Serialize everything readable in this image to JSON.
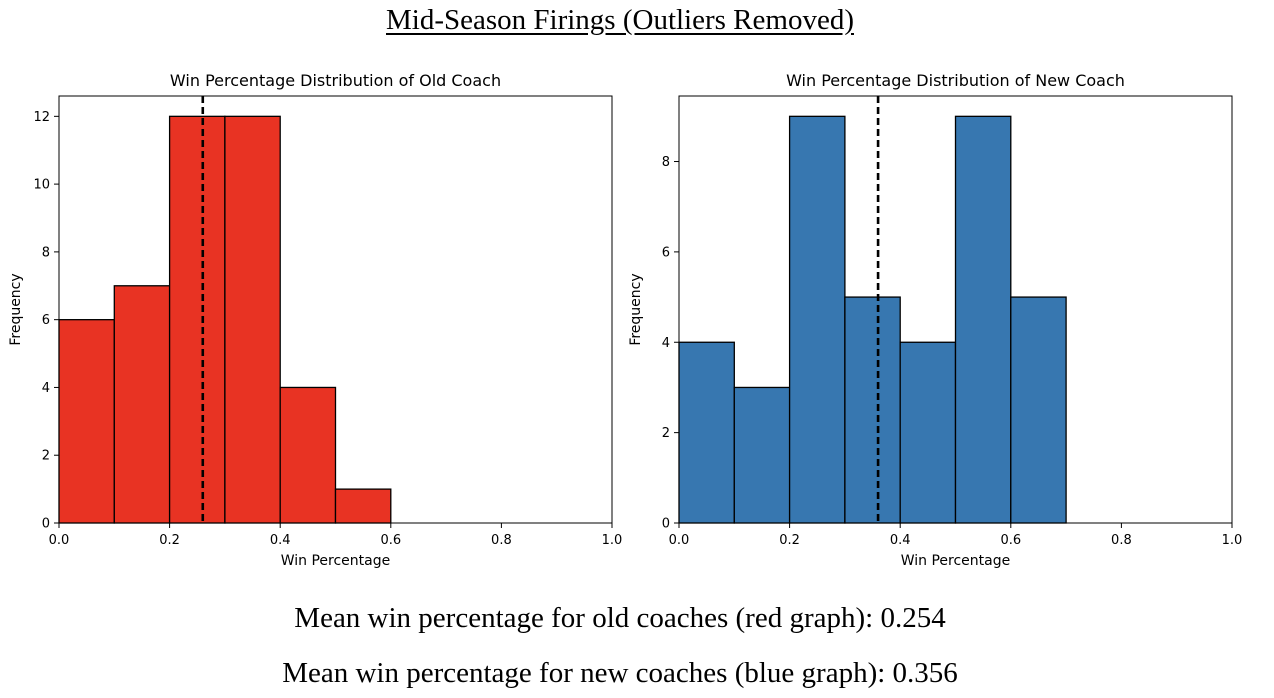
{
  "header": {
    "title": "Mid-Season Firings (Outliers Removed)"
  },
  "captions": {
    "old": "Mean win percentage for old coaches (red graph): 0.254",
    "new": "Mean win percentage for new coaches (blue graph): 0.356"
  },
  "chart_data": [
    {
      "type": "bar",
      "title": "Win Percentage Distribution of Old Coach",
      "xlabel": "Win Percentage",
      "ylabel": "Frequency",
      "bin_edges": [
        0.0,
        0.1,
        0.2,
        0.3,
        0.4,
        0.5,
        0.6
      ],
      "values": [
        6,
        7,
        12,
        12,
        4,
        1
      ],
      "xlim": [
        0.0,
        1.0
      ],
      "ylim": [
        0,
        12.6
      ],
      "xticks": [
        "0.0",
        "0.2",
        "0.4",
        "0.6",
        "0.8",
        "1.0"
      ],
      "yticks": [
        "0",
        "2",
        "4",
        "6",
        "8",
        "10",
        "12"
      ],
      "mean_line": 0.26,
      "bar_color": "#e83323",
      "edge_color": "#000000",
      "grid": false
    },
    {
      "type": "bar",
      "title": "Win Percentage Distribution of New Coach",
      "xlabel": "Win Percentage",
      "ylabel": "Frequency",
      "bin_edges": [
        0.0,
        0.1,
        0.2,
        0.3,
        0.4,
        0.5,
        0.6,
        0.7
      ],
      "values": [
        4,
        3,
        9,
        5,
        4,
        9,
        5
      ],
      "xlim": [
        0.0,
        1.0
      ],
      "ylim": [
        0,
        9.45
      ],
      "xticks": [
        "0.0",
        "0.2",
        "0.4",
        "0.6",
        "0.8",
        "1.0"
      ],
      "yticks": [
        "0",
        "2",
        "4",
        "6",
        "8"
      ],
      "mean_line": 0.36,
      "bar_color": "#3777b0",
      "edge_color": "#000000",
      "grid": false
    }
  ]
}
